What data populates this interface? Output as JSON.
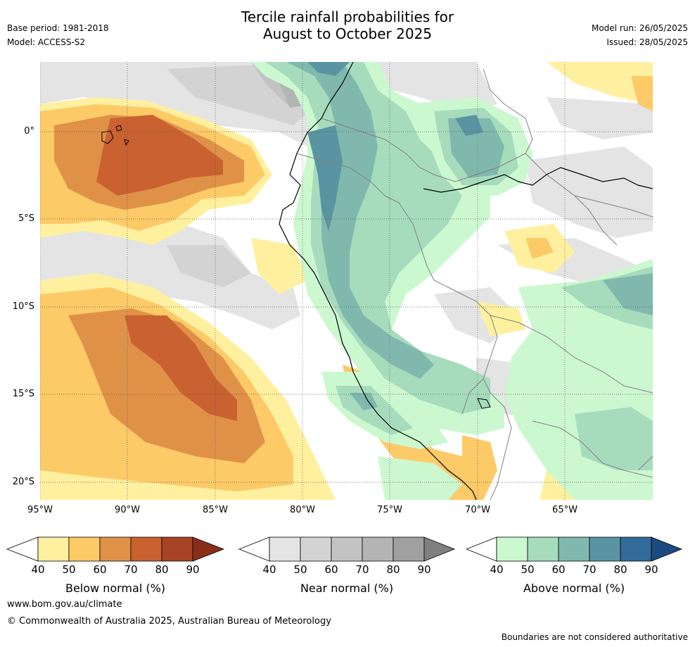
{
  "header": {
    "title_line1": "Tercile rainfall probabilities for",
    "title_line2": "August to October 2025",
    "base_period": "Base period: 1981-2018",
    "model": "Model: ACCESS-S2",
    "model_run": "Model run: 26/05/2025",
    "issued": "Issued: 28/05/2025"
  },
  "map": {
    "lat_labels": [
      "0°",
      "5°S",
      "10°S",
      "15°S",
      "20°S"
    ],
    "lon_labels": [
      "95°W",
      "90°W",
      "85°W",
      "80°W",
      "75°W",
      "70°W",
      "65°W"
    ],
    "colors": {
      "below": [
        "#fff0a0",
        "#fdca68",
        "#e09148",
        "#c96230",
        "#a84426",
        "#8a2e1c"
      ],
      "near": [
        "#e4e4e4",
        "#d3d3d3",
        "#c3c3c3",
        "#b4b4b4",
        "#a0a0a0",
        "#808080"
      ],
      "above": [
        "#ccf8d0",
        "#a6dcbc",
        "#80b8ae",
        "#5a94a2",
        "#326a9a",
        "#1a4a80"
      ]
    }
  },
  "colorbars": [
    {
      "label": "Below normal (%)",
      "ticks": [
        "40",
        "50",
        "60",
        "70",
        "80",
        "90"
      ]
    },
    {
      "label": "Near normal (%)",
      "ticks": [
        "40",
        "50",
        "60",
        "70",
        "80",
        "90"
      ]
    },
    {
      "label": "Above normal (%)",
      "ticks": [
        "40",
        "50",
        "60",
        "70",
        "80",
        "90"
      ]
    }
  ],
  "footer": {
    "website": "www.bom.gov.au/climate",
    "copyright": "© Commonwealth of Australia 2025, Australian Bureau of Meteorology",
    "note": "Boundaries are not considered authoritative"
  }
}
